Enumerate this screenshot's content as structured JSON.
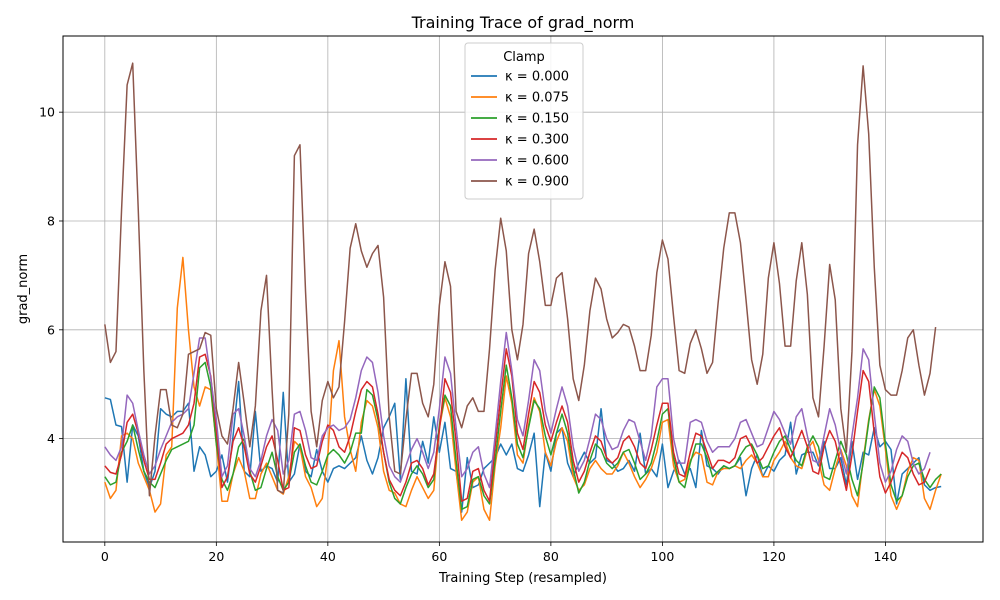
{
  "chart_data": {
    "type": "line",
    "title": "Training Trace of grad_norm",
    "xlabel": "Training Step (resampled)",
    "ylabel": "grad_norm",
    "xlim": [
      -7.5,
      157.5
    ],
    "ylim": [
      2.1,
      11.4
    ],
    "xticks": [
      0,
      20,
      40,
      60,
      80,
      100,
      120,
      140
    ],
    "yticks": [
      4,
      6,
      8,
      10
    ],
    "grid": true,
    "legend": {
      "title": "Clamp",
      "position": "top-center"
    },
    "series": [
      {
        "name": "κ = 0.000",
        "color": "#1f77b4",
        "values": [
          4.75,
          4.72,
          4.25,
          4.22,
          3.2,
          4.25,
          4.05,
          3.4,
          3.1,
          3.4,
          4.55,
          4.45,
          4.4,
          4.5,
          4.5,
          4.65,
          3.4,
          3.85,
          3.7,
          3.3,
          3.4,
          3.7,
          3.2,
          4.05,
          5.05,
          3.4,
          3.3,
          4.5,
          3.4,
          3.5,
          3.45,
          3.2,
          4.85,
          3.2,
          3.35,
          3.9,
          3.4,
          3.3,
          3.8,
          3.4,
          3.2,
          3.45,
          3.5,
          3.45,
          3.55,
          3.65,
          4.05,
          3.6,
          3.35,
          3.65,
          4.2,
          4.4,
          4.65,
          3.25,
          5.1,
          3.4,
          3.35,
          3.95,
          3.55,
          4.4,
          3.75,
          4.3,
          3.45,
          3.4,
          2.65,
          3.65,
          3.1,
          3.15,
          3.45,
          3.55,
          3.65,
          3.9,
          3.7,
          3.9,
          3.45,
          3.4,
          3.7,
          4.1,
          2.75,
          3.75,
          3.4,
          4.1,
          4.2,
          3.55,
          3.3,
          3.55,
          3.75,
          3.55,
          3.65,
          4.55,
          3.6,
          3.55,
          3.4,
          3.45,
          3.6,
          3.4,
          4.1,
          3.35,
          3.45,
          3.3,
          3.9,
          3.1,
          3.4,
          3.6,
          3.35,
          3.45,
          3.1,
          4.15,
          3.5,
          3.45,
          3.35,
          3.5,
          3.45,
          3.5,
          3.65,
          2.95,
          3.45,
          3.7,
          3.3,
          3.5,
          3.4,
          3.6,
          3.7,
          4.3,
          3.35,
          3.7,
          3.75,
          3.75,
          3.5,
          3.95,
          3.45,
          3.45,
          3.65,
          3.15,
          3.95,
          3.25,
          3.75,
          3.7,
          4.2,
          3.85,
          3.95,
          3.8,
          2.8,
          3.35,
          3.45,
          3.55,
          3.65,
          3.15,
          3.05,
          3.1,
          3.12
        ]
      },
      {
        "name": "κ = 0.075",
        "color": "#ff7f0e",
        "values": [
          3.2,
          2.9,
          3.05,
          4.05,
          4.1,
          4.0,
          3.55,
          3.3,
          3.05,
          2.65,
          2.8,
          3.7,
          3.85,
          6.4,
          7.33,
          6.0,
          4.95,
          4.6,
          4.95,
          4.9,
          3.9,
          2.85,
          2.85,
          3.35,
          3.65,
          3.4,
          2.9,
          2.9,
          3.35,
          3.55,
          3.3,
          3.05,
          2.98,
          3.3,
          3.95,
          3.85,
          3.3,
          3.1,
          2.75,
          2.9,
          3.7,
          5.25,
          5.8,
          4.4,
          3.8,
          3.4,
          4.3,
          4.7,
          4.6,
          4.2,
          3.4,
          3.05,
          3.0,
          2.8,
          2.75,
          3.05,
          3.3,
          3.1,
          2.9,
          3.05,
          4.2,
          4.75,
          4.4,
          3.4,
          2.5,
          2.65,
          3.2,
          3.3,
          2.7,
          2.5,
          3.5,
          4.2,
          5.15,
          4.65,
          3.7,
          3.55,
          4.25,
          4.75,
          4.5,
          3.75,
          3.5,
          3.95,
          4.2,
          3.95,
          3.3,
          3.05,
          3.15,
          3.45,
          3.6,
          3.45,
          3.35,
          3.35,
          3.5,
          3.75,
          3.55,
          3.3,
          3.1,
          3.25,
          3.45,
          3.75,
          4.3,
          4.35,
          3.5,
          3.2,
          3.25,
          3.6,
          3.75,
          3.7,
          3.2,
          3.15,
          3.4,
          3.45,
          3.45,
          3.5,
          3.45,
          3.6,
          3.7,
          3.55,
          3.3,
          3.3,
          3.6,
          3.75,
          3.95,
          3.65,
          3.5,
          3.45,
          3.8,
          3.95,
          3.6,
          3.15,
          3.05,
          3.45,
          3.8,
          3.5,
          2.95,
          2.75,
          3.6,
          4.35,
          4.9,
          4.6,
          3.8,
          2.95,
          2.7,
          2.95,
          3.4,
          3.65,
          3.6,
          2.9,
          2.7,
          3.05,
          3.35
        ]
      },
      {
        "name": "κ = 0.150",
        "color": "#2ca02c",
        "values": [
          3.3,
          3.15,
          3.2,
          3.75,
          3.95,
          4.25,
          3.8,
          3.4,
          3.2,
          3.1,
          3.35,
          3.6,
          3.8,
          3.85,
          3.9,
          3.95,
          4.25,
          5.3,
          5.4,
          4.95,
          3.9,
          3.25,
          3.05,
          3.35,
          3.85,
          4.0,
          3.4,
          3.05,
          3.1,
          3.45,
          3.75,
          3.3,
          3.05,
          3.2,
          3.75,
          3.9,
          3.5,
          3.2,
          3.15,
          3.4,
          3.7,
          3.8,
          3.7,
          3.55,
          3.75,
          4.1,
          4.1,
          4.9,
          4.8,
          4.35,
          3.75,
          3.2,
          2.9,
          2.8,
          3.1,
          3.35,
          3.5,
          3.35,
          3.1,
          3.25,
          4.25,
          4.8,
          4.6,
          3.6,
          2.7,
          2.75,
          3.25,
          3.3,
          2.95,
          2.8,
          3.6,
          4.5,
          5.35,
          4.75,
          3.9,
          3.65,
          4.2,
          4.7,
          4.55,
          4.05,
          3.7,
          4.1,
          4.45,
          4.1,
          3.45,
          3.0,
          3.2,
          3.6,
          3.9,
          3.8,
          3.55,
          3.45,
          3.55,
          3.75,
          3.8,
          3.55,
          3.25,
          3.35,
          3.55,
          3.95,
          4.45,
          4.55,
          3.65,
          3.2,
          3.1,
          3.55,
          3.9,
          3.9,
          3.65,
          3.3,
          3.4,
          3.5,
          3.45,
          3.5,
          3.7,
          3.85,
          3.9,
          3.7,
          3.45,
          3.5,
          3.75,
          3.95,
          4.05,
          3.8,
          3.6,
          3.5,
          3.85,
          4.05,
          3.85,
          3.3,
          3.25,
          3.6,
          3.95,
          3.7,
          3.25,
          2.95,
          3.55,
          4.3,
          4.95,
          4.75,
          3.9,
          3.15,
          2.85,
          2.95,
          3.3,
          3.5,
          3.55,
          3.25,
          3.1,
          3.25,
          3.35
        ]
      },
      {
        "name": "κ = 0.300",
        "color": "#d62728",
        "values": [
          3.5,
          3.38,
          3.35,
          3.7,
          4.3,
          4.45,
          4.1,
          3.6,
          3.25,
          3.25,
          3.55,
          3.9,
          4.0,
          4.05,
          4.1,
          4.25,
          4.65,
          5.5,
          5.55,
          5.15,
          4.15,
          3.1,
          3.3,
          3.95,
          4.2,
          3.85,
          3.35,
          3.2,
          3.5,
          3.85,
          4.05,
          3.6,
          3.05,
          3.1,
          4.2,
          4.15,
          3.7,
          3.45,
          3.5,
          3.95,
          4.25,
          4.15,
          3.85,
          3.75,
          4.05,
          4.5,
          4.9,
          5.05,
          4.95,
          4.45,
          3.75,
          3.25,
          3.05,
          2.95,
          3.2,
          3.55,
          3.6,
          3.45,
          3.15,
          3.35,
          4.15,
          5.1,
          4.85,
          3.95,
          2.85,
          2.9,
          3.4,
          3.45,
          3.05,
          2.85,
          3.85,
          4.75,
          5.65,
          5.15,
          4.1,
          3.8,
          4.45,
          5.05,
          4.85,
          4.25,
          3.95,
          4.3,
          4.6,
          4.3,
          3.6,
          3.2,
          3.4,
          3.75,
          4.05,
          3.95,
          3.65,
          3.55,
          3.65,
          3.95,
          4.05,
          3.85,
          3.55,
          3.45,
          3.8,
          4.25,
          4.65,
          4.65,
          3.75,
          3.35,
          3.3,
          3.75,
          4.1,
          4.05,
          3.75,
          3.45,
          3.6,
          3.6,
          3.55,
          3.65,
          4.0,
          4.05,
          3.85,
          3.55,
          3.65,
          3.85,
          4.05,
          4.2,
          3.85,
          3.65,
          3.9,
          4.15,
          3.85,
          3.4,
          3.35,
          3.85,
          4.15,
          3.95,
          3.5,
          3.05,
          3.7,
          4.5,
          5.25,
          5.05,
          4.1,
          3.3,
          3.0,
          3.2,
          3.5,
          3.75,
          3.65,
          3.35,
          3.15,
          3.2,
          3.45
        ]
      },
      {
        "name": "κ = 0.600",
        "color": "#9467bd",
        "values": [
          3.85,
          3.7,
          3.6,
          3.85,
          4.8,
          4.65,
          4.15,
          3.7,
          3.35,
          3.5,
          3.8,
          4.05,
          4.3,
          4.4,
          4.45,
          4.55,
          5.2,
          5.85,
          5.85,
          5.1,
          4.35,
          3.3,
          3.5,
          4.45,
          4.55,
          4.05,
          3.45,
          3.3,
          3.6,
          4.05,
          4.35,
          4.15,
          3.35,
          3.6,
          4.45,
          4.5,
          4.15,
          3.65,
          3.6,
          4.05,
          4.2,
          4.25,
          4.15,
          4.2,
          4.35,
          4.75,
          5.25,
          5.5,
          5.4,
          4.85,
          4.05,
          3.5,
          3.3,
          3.2,
          3.5,
          3.8,
          4.0,
          3.75,
          3.45,
          3.75,
          4.55,
          5.5,
          5.2,
          4.2,
          3.3,
          3.45,
          3.75,
          3.85,
          3.35,
          3.1,
          4.05,
          5.05,
          5.95,
          5.25,
          4.35,
          4.05,
          4.7,
          5.45,
          5.25,
          4.5,
          4.1,
          4.55,
          4.95,
          4.6,
          3.85,
          3.4,
          3.6,
          4.0,
          4.45,
          4.35,
          4.0,
          3.8,
          3.85,
          4.15,
          4.35,
          4.3,
          3.95,
          3.6,
          4.05,
          4.95,
          5.1,
          5.1,
          4.0,
          3.55,
          3.55,
          4.3,
          4.35,
          4.3,
          3.95,
          3.75,
          3.85,
          3.85,
          3.85,
          4.0,
          4.3,
          4.35,
          4.1,
          3.85,
          3.9,
          4.2,
          4.5,
          4.35,
          4.1,
          3.9,
          4.4,
          4.55,
          4.05,
          3.6,
          3.55,
          4.05,
          4.55,
          4.25,
          3.75,
          3.35,
          4.05,
          4.75,
          5.65,
          5.45,
          4.45,
          3.55,
          3.2,
          3.4,
          3.8,
          4.05,
          3.95,
          3.55,
          3.35,
          3.45,
          3.75
        ]
      },
      {
        "name": "κ = 0.900",
        "color": "#8c564b",
        "values": [
          6.1,
          5.4,
          5.6,
          8.2,
          10.5,
          10.9,
          8.2,
          5.25,
          2.95,
          4.05,
          4.9,
          4.9,
          4.25,
          4.2,
          4.45,
          5.55,
          5.6,
          5.65,
          5.95,
          5.9,
          4.55,
          4.05,
          3.9,
          4.55,
          5.4,
          4.65,
          3.85,
          4.6,
          6.35,
          7.0,
          4.9,
          3.05,
          3.0,
          4.45,
          9.2,
          9.4,
          6.7,
          4.5,
          3.85,
          4.7,
          5.05,
          4.75,
          4.95,
          6.15,
          7.5,
          7.95,
          7.45,
          7.15,
          7.4,
          7.55,
          6.6,
          4.4,
          3.4,
          3.35,
          4.35,
          5.2,
          5.2,
          4.65,
          4.4,
          5.0,
          6.45,
          7.25,
          6.8,
          4.5,
          4.2,
          4.6,
          4.75,
          4.5,
          4.5,
          5.65,
          7.1,
          8.05,
          7.45,
          6.0,
          5.45,
          6.1,
          7.4,
          7.85,
          7.25,
          6.45,
          6.45,
          6.95,
          7.05,
          6.2,
          5.1,
          4.7,
          5.35,
          6.35,
          6.95,
          6.75,
          6.2,
          5.85,
          5.95,
          6.1,
          6.05,
          5.7,
          5.25,
          5.25,
          5.9,
          7.05,
          7.65,
          7.3,
          6.25,
          5.25,
          5.2,
          5.75,
          6.0,
          5.65,
          5.2,
          5.4,
          6.5,
          7.5,
          8.15,
          8.15,
          7.6,
          6.55,
          5.45,
          5.0,
          5.55,
          6.95,
          7.6,
          6.85,
          5.7,
          5.7,
          6.9,
          7.6,
          6.65,
          4.75,
          4.4,
          5.7,
          7.2,
          6.55,
          4.55,
          3.75,
          5.6,
          9.4,
          10.85,
          9.6,
          7.15,
          5.35,
          4.9,
          4.8,
          4.8,
          5.25,
          5.85,
          6.0,
          5.35,
          4.8,
          5.2,
          6.05
        ]
      }
    ]
  }
}
